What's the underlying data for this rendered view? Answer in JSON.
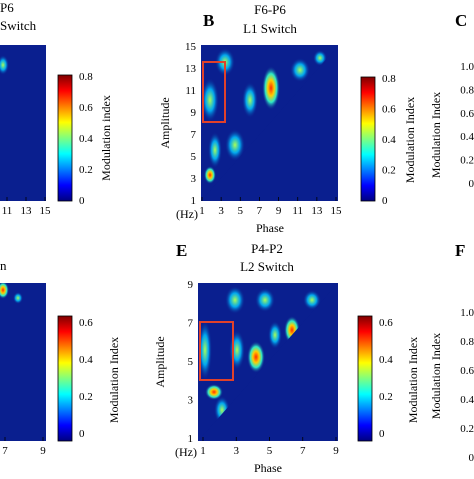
{
  "colors": {
    "plot_background": "#0a1f8f",
    "colormap": [
      "#00007f",
      "#0000ff",
      "#007fff",
      "#00ffff",
      "#7fff7f",
      "#ffff00",
      "#ff7f00",
      "#ff0000",
      "#7f0000"
    ],
    "highlight_box": "#e0412a"
  },
  "panels": [
    {
      "id": "A",
      "letter": "",
      "title": [
        "P6",
        "Switch"
      ],
      "xlabel": "",
      "ylabel": "",
      "colorbar": {
        "label": "Modulation index",
        "ticks": [
          "0.8",
          "0.6",
          "0.4",
          "0.2",
          "0"
        ]
      },
      "xticks": [
        "11",
        "13",
        "15"
      ]
    },
    {
      "id": "B",
      "letter": "B",
      "title": [
        "F6-P6",
        "L1 Switch"
      ],
      "xlabel": "Phase",
      "ylabel": "Amplitude",
      "unit_label": "(Hz)",
      "colorbar": {
        "label": "Modulation Index",
        "ticks": [
          "0.8",
          "0.6",
          "0.4",
          "0.2",
          "0"
        ]
      },
      "xticks": [
        "1",
        "3",
        "5",
        "7",
        "9",
        "11",
        "13",
        "15"
      ],
      "yticks": [
        "15",
        "13",
        "11",
        "9",
        "7",
        "5",
        "3",
        "1"
      ]
    },
    {
      "id": "C",
      "letter": "C",
      "title": [],
      "colorbar": {
        "label": "Modulation Index",
        "ticks": [
          "1.0",
          "0.8",
          "0.6",
          "0.4",
          "0.2",
          "0"
        ]
      }
    },
    {
      "id": "D",
      "letter": "",
      "title": [
        "n"
      ],
      "colorbar": {
        "label": "Modulation Index",
        "ticks": [
          "0.6",
          "0.4",
          "0.2",
          "0"
        ]
      },
      "xticks": [
        "7",
        "9"
      ]
    },
    {
      "id": "E",
      "letter": "E",
      "title": [
        "P4-P2",
        "L2 Switch"
      ],
      "xlabel": "Phase",
      "ylabel": "Amplitude",
      "unit_label": "(Hz)",
      "colorbar": {
        "label": "Modulation Index",
        "ticks": [
          "0.6",
          "0.4",
          "0.2",
          "0"
        ]
      },
      "xticks": [
        "1",
        "3",
        "5",
        "7",
        "9"
      ],
      "yticks": [
        "9",
        "7",
        "5",
        "3",
        "1"
      ]
    },
    {
      "id": "F",
      "letter": "F",
      "title": [],
      "colorbar": {
        "label": "Modulation Index",
        "ticks": [
          "1.0",
          "0.8",
          "0.6",
          "0.4",
          "0.2",
          "0"
        ]
      }
    }
  ],
  "chart_data": [
    {
      "type": "heatmap",
      "panel": "B",
      "title": "F6-P6 L1 Switch",
      "xlabel": "Phase",
      "ylabel": "Amplitude",
      "x_unit": "Hz",
      "xlim": [
        1,
        15
      ],
      "ylim": [
        1,
        15
      ],
      "clim": [
        0,
        0.8
      ],
      "valid_region": "Amplitude >= Phase",
      "highlight_box": {
        "x": [
          1,
          3
        ],
        "y": [
          8,
          14
        ]
      },
      "hotspots": [
        {
          "x": 7.5,
          "y": 11,
          "value": 0.75
        },
        {
          "x": 2,
          "y": 3,
          "value": 0.7
        },
        {
          "x": 4,
          "y": 12.5,
          "value": 0.45
        },
        {
          "x": 2,
          "y": 10.5,
          "value": 0.4
        },
        {
          "x": 5,
          "y": 6,
          "value": 0.35
        },
        {
          "x": 9.5,
          "y": 13,
          "value": 0.3
        },
        {
          "x": 3,
          "y": 7,
          "value": 0.3
        }
      ]
    },
    {
      "type": "heatmap",
      "panel": "E",
      "title": "P4-P2 L2 Switch",
      "xlabel": "Phase",
      "ylabel": "Amplitude",
      "x_unit": "Hz",
      "xlim": [
        1,
        9
      ],
      "ylim": [
        1,
        9
      ],
      "clim": [
        0,
        0.6
      ],
      "valid_region": "Amplitude >= Phase",
      "highlight_box": {
        "x": [
          1,
          3
        ],
        "y": [
          4,
          7
        ]
      },
      "hotspots": [
        {
          "x": 4.5,
          "y": 5.5,
          "value": 0.6
        },
        {
          "x": 6.7,
          "y": 6,
          "value": 0.6
        },
        {
          "x": 2,
          "y": 3.6,
          "value": 0.5
        },
        {
          "x": 3,
          "y": 8,
          "value": 0.5
        },
        {
          "x": 5,
          "y": 7.5,
          "value": 0.45
        },
        {
          "x": 1.5,
          "y": 6,
          "value": 0.4
        },
        {
          "x": 6,
          "y": 8.5,
          "value": 0.4
        }
      ]
    }
  ]
}
